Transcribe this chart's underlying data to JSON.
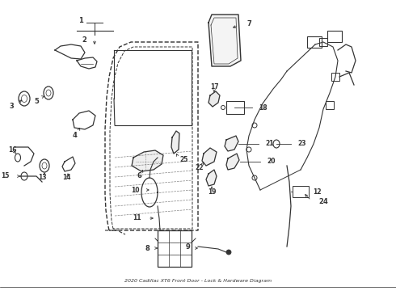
{
  "title": "2020 Cadillac XT6 Front Door - Lock & Hardware Diagram",
  "bg_color": "#ffffff",
  "line_color": "#333333",
  "figsize": [
    4.9,
    3.6
  ],
  "dpi": 100,
  "xlim": [
    0,
    490
  ],
  "ylim": [
    0,
    360
  ]
}
